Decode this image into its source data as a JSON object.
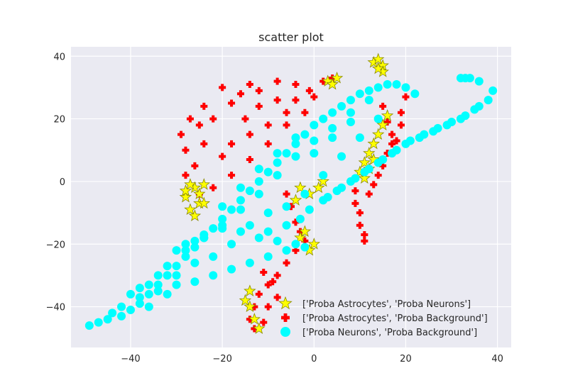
{
  "chart_data": {
    "type": "scatter",
    "title": "scatter plot",
    "xlabel": "",
    "ylabel": "",
    "xlim": [
      -53,
      43
    ],
    "ylim": [
      -53,
      43
    ],
    "xticks": [
      -40,
      -20,
      0,
      20,
      40
    ],
    "yticks": [
      -40,
      -20,
      0,
      20,
      40
    ],
    "xtick_labels": [
      "−40",
      "−20",
      "0",
      "20",
      "40"
    ],
    "ytick_labels": [
      "−40",
      "−20",
      "0",
      "20",
      "40"
    ],
    "grid": true,
    "legend_placement": "lower-right",
    "series": [
      {
        "name": "['Proba Astrocytes', 'Proba Background']",
        "marker": "plus",
        "color": "#ff0000",
        "points": [
          [
            -20,
            30
          ],
          [
            -14,
            31
          ],
          [
            -8,
            32
          ],
          [
            -4,
            31
          ],
          [
            -1,
            29
          ],
          [
            0,
            27
          ],
          [
            -2,
            22
          ],
          [
            -6,
            18
          ],
          [
            -10,
            12
          ],
          [
            -14,
            7
          ],
          [
            -18,
            2
          ],
          [
            -22,
            -2
          ],
          [
            -25,
            -4
          ],
          [
            -28,
            2
          ],
          [
            -28,
            10
          ],
          [
            -29,
            15
          ],
          [
            -27,
            20
          ],
          [
            -24,
            24
          ],
          [
            -22,
            20
          ],
          [
            -18,
            25
          ],
          [
            -15,
            20
          ],
          [
            -12,
            24
          ],
          [
            -10,
            18
          ],
          [
            -8,
            26
          ],
          [
            -6,
            22
          ],
          [
            -4,
            26
          ],
          [
            -18,
            12
          ],
          [
            -14,
            15
          ],
          [
            -20,
            8
          ],
          [
            -24,
            12
          ],
          [
            -25,
            18
          ],
          [
            -16,
            28
          ],
          [
            -12,
            29
          ],
          [
            -26,
            5
          ],
          [
            2,
            32
          ],
          [
            4,
            33
          ],
          [
            -6,
            -4
          ],
          [
            -5,
            -8
          ],
          [
            -4,
            -13
          ],
          [
            -3,
            -16
          ],
          [
            -2,
            -19
          ],
          [
            -4,
            -22
          ],
          [
            -6,
            -26
          ],
          [
            -8,
            -30
          ],
          [
            -10,
            -33
          ],
          [
            -12,
            -36
          ],
          [
            -13,
            -40
          ],
          [
            -14,
            -44
          ],
          [
            -13,
            -47
          ],
          [
            -11,
            -45
          ],
          [
            -10,
            -40
          ],
          [
            -8,
            -37
          ],
          [
            -9,
            -32
          ],
          [
            -11,
            -29
          ],
          [
            9,
            -3
          ],
          [
            9,
            -7
          ],
          [
            10,
            -10
          ],
          [
            10,
            -14
          ],
          [
            11,
            -17
          ],
          [
            11,
            -19
          ],
          [
            12,
            -4
          ],
          [
            13,
            -1
          ],
          [
            14,
            2
          ],
          [
            15,
            5
          ],
          [
            16,
            9
          ],
          [
            17,
            12
          ],
          [
            17,
            15
          ],
          [
            16,
            19
          ],
          [
            18,
            13
          ],
          [
            19,
            18
          ],
          [
            19,
            22
          ],
          [
            20,
            27
          ],
          [
            14,
            30
          ],
          [
            15,
            24
          ]
        ]
      },
      {
        "name": "['Proba Astrocytes', 'Proba Neurons']",
        "marker": "star",
        "color": "#ffff00",
        "edgecolor": "#8a8a00",
        "points": [
          [
            -28,
            -5
          ],
          [
            -27,
            -9
          ],
          [
            -26,
            -11
          ],
          [
            -25,
            -7
          ],
          [
            -26,
            -2
          ],
          [
            -24,
            -1
          ],
          [
            -25,
            -4
          ],
          [
            -27,
            -1
          ],
          [
            -28,
            -3
          ],
          [
            -24,
            -7
          ],
          [
            -3,
            -18
          ],
          [
            -2,
            -16
          ],
          [
            0,
            -20
          ],
          [
            -1,
            -22
          ],
          [
            -14,
            -35
          ],
          [
            -14,
            -40
          ],
          [
            -12,
            -47
          ],
          [
            -13,
            -44
          ],
          [
            -15,
            -38
          ],
          [
            -3,
            -2
          ],
          [
            -1,
            -4
          ],
          [
            1,
            -2
          ],
          [
            -4,
            -6
          ],
          [
            2,
            0
          ],
          [
            3,
            32
          ],
          [
            5,
            33
          ],
          [
            4,
            31
          ],
          [
            13,
            38
          ],
          [
            14,
            39
          ],
          [
            15,
            37
          ],
          [
            15,
            35
          ],
          [
            14,
            36
          ],
          [
            10,
            3
          ],
          [
            11,
            6
          ],
          [
            12,
            9
          ],
          [
            13,
            12
          ],
          [
            14,
            15
          ],
          [
            15,
            18
          ],
          [
            16,
            21
          ],
          [
            11,
            1
          ],
          [
            12,
            4
          ],
          [
            13,
            7
          ]
        ]
      },
      {
        "name": "['Proba Neurons', 'Proba Background']",
        "marker": "circle",
        "color": "#00ffff",
        "points": [
          [
            -49,
            -46
          ],
          [
            -47,
            -45
          ],
          [
            -45,
            -44
          ],
          [
            -42,
            -43
          ],
          [
            -40,
            -41
          ],
          [
            -38,
            -39
          ],
          [
            -36,
            -36
          ],
          [
            -34,
            -33
          ],
          [
            -32,
            -30
          ],
          [
            -30,
            -27
          ],
          [
            -28,
            -24
          ],
          [
            -26,
            -21
          ],
          [
            -24,
            -18
          ],
          [
            -22,
            -15
          ],
          [
            -20,
            -12
          ],
          [
            -18,
            -9
          ],
          [
            -16,
            -6
          ],
          [
            -14,
            -3
          ],
          [
            -12,
            0
          ],
          [
            -10,
            3
          ],
          [
            -8,
            6
          ],
          [
            -6,
            9
          ],
          [
            -4,
            12
          ],
          [
            -2,
            15
          ],
          [
            0,
            18
          ],
          [
            2,
            20
          ],
          [
            4,
            22
          ],
          [
            6,
            24
          ],
          [
            8,
            26
          ],
          [
            10,
            28
          ],
          [
            12,
            29
          ],
          [
            14,
            30
          ],
          [
            16,
            31
          ],
          [
            18,
            31
          ],
          [
            20,
            30
          ],
          [
            22,
            28
          ],
          [
            -40,
            -36
          ],
          [
            -36,
            -33
          ],
          [
            -32,
            -27
          ],
          [
            -28,
            -22
          ],
          [
            -24,
            -18
          ],
          [
            -20,
            -14
          ],
          [
            -16,
            -9
          ],
          [
            -12,
            -4
          ],
          [
            -8,
            2
          ],
          [
            -4,
            8
          ],
          [
            0,
            13
          ],
          [
            4,
            17
          ],
          [
            8,
            22
          ],
          [
            12,
            26
          ],
          [
            -42,
            -40
          ],
          [
            -38,
            -37
          ],
          [
            -34,
            -35
          ],
          [
            -30,
            -33
          ],
          [
            -26,
            -32
          ],
          [
            -22,
            -30
          ],
          [
            -18,
            -28
          ],
          [
            -14,
            -26
          ],
          [
            -10,
            -24
          ],
          [
            -6,
            -22
          ],
          [
            -2,
            -21
          ],
          [
            -4,
            -20
          ],
          [
            -8,
            -19
          ],
          [
            -12,
            -18
          ],
          [
            -16,
            -16
          ],
          [
            -20,
            -15
          ],
          [
            -24,
            -17
          ],
          [
            -28,
            -20
          ],
          [
            -30,
            -22
          ],
          [
            -26,
            -19
          ],
          [
            -3,
            -12
          ],
          [
            -1,
            -9
          ],
          [
            2,
            -6
          ],
          [
            5,
            -3
          ],
          [
            8,
            0
          ],
          [
            11,
            3
          ],
          [
            14,
            6
          ],
          [
            17,
            9
          ],
          [
            20,
            12
          ],
          [
            23,
            14
          ],
          [
            26,
            16
          ],
          [
            29,
            18
          ],
          [
            32,
            20
          ],
          [
            35,
            23
          ],
          [
            38,
            26
          ],
          [
            39,
            29
          ],
          [
            36,
            24
          ],
          [
            33,
            21
          ],
          [
            30,
            19
          ],
          [
            27,
            17
          ],
          [
            24,
            15
          ],
          [
            21,
            13
          ],
          [
            18,
            10
          ],
          [
            15,
            7
          ],
          [
            12,
            4
          ],
          [
            9,
            1
          ],
          [
            6,
            -2
          ],
          [
            3,
            -5
          ],
          [
            33,
            33
          ],
          [
            34,
            33
          ],
          [
            32,
            33
          ],
          [
            36,
            32
          ],
          [
            -20,
            -8
          ],
          [
            -16,
            -2
          ],
          [
            -12,
            4
          ],
          [
            -8,
            9
          ],
          [
            -4,
            14
          ],
          [
            0,
            9
          ],
          [
            4,
            14
          ],
          [
            8,
            19
          ],
          [
            -6,
            -14
          ],
          [
            -10,
            -10
          ],
          [
            -14,
            -14
          ],
          [
            -18,
            -20
          ],
          [
            -22,
            -24
          ],
          [
            -10,
            -16
          ],
          [
            -6,
            -8
          ],
          [
            -2,
            -4
          ],
          [
            2,
            2
          ],
          [
            6,
            8
          ],
          [
            10,
            14
          ],
          [
            14,
            20
          ],
          [
            -26,
            -26
          ],
          [
            -30,
            -30
          ],
          [
            -34,
            -30
          ],
          [
            -38,
            -34
          ],
          [
            -44,
            -42
          ],
          [
            -36,
            -40
          ],
          [
            -32,
            -36
          ]
        ]
      }
    ]
  }
}
